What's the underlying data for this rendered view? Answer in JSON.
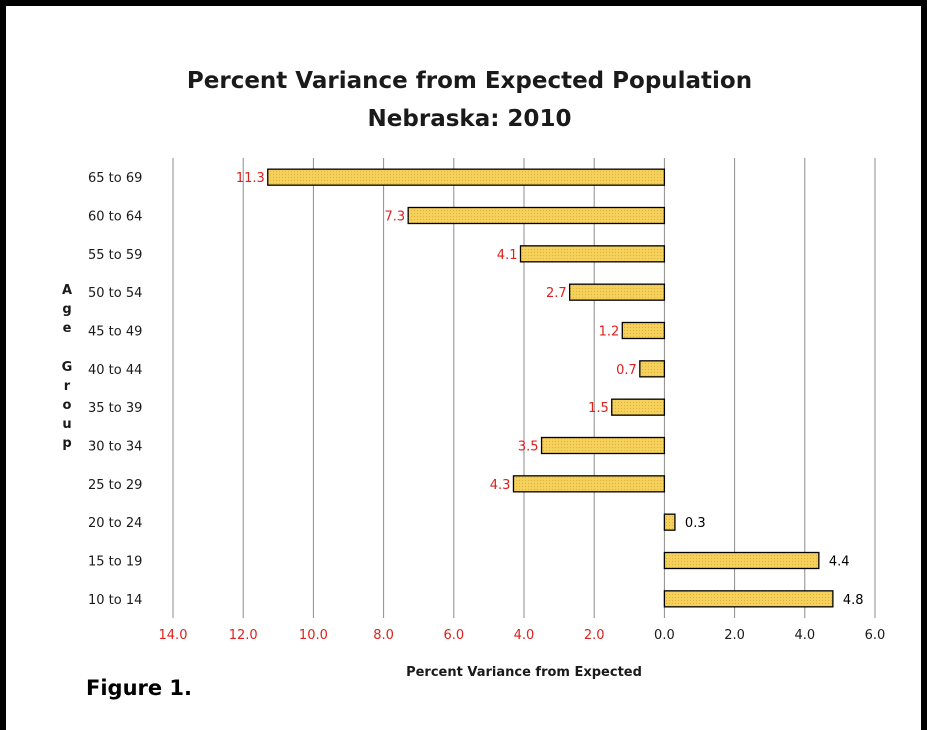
{
  "chart_data": {
    "type": "bar",
    "orientation": "horizontal",
    "title": "Percent Variance from Expected Population",
    "subtitle": "Nebraska: 2010",
    "xlabel": "Percent Variance from Expected",
    "ylabel": "Age Group",
    "categories": [
      "65 to 69",
      "60 to 64",
      "55 to 59",
      "50 to 54",
      "45 to 49",
      "40 to 44",
      "35 to 39",
      "30 to 34",
      "25 to 29",
      "20 to 24",
      "15 to 19",
      "10 to 14"
    ],
    "values": [
      -11.3,
      -7.3,
      -4.1,
      -2.7,
      -1.2,
      -0.7,
      -1.5,
      -3.5,
      -4.3,
      0.3,
      4.4,
      4.8
    ],
    "data_labels": [
      "11.3",
      "7.3",
      "4.1",
      "2.7",
      "1.2",
      "0.7",
      "1.5",
      "3.5",
      "4.3",
      "0.3",
      "4.4",
      "4.8"
    ],
    "xlim": [
      -14,
      6
    ],
    "x_tick_values": [
      -14,
      -12,
      -10,
      -8,
      -6,
      -4,
      -2,
      0,
      2,
      4,
      6
    ],
    "x_tick_labels": [
      "14.0",
      "12.0",
      "10.0",
      "8.0",
      "6.0",
      "4.0",
      "2.0",
      "0.0",
      "2.0",
      "4.0",
      "6.0"
    ],
    "grid": true,
    "legend": "none",
    "colors": {
      "bar_fill": "#f5d05a",
      "bar_stroke": "#000000",
      "negative_label": "#e0201e",
      "positive_label": "#000000",
      "gridline": "#8c8c8c"
    }
  },
  "figure_label": "Figure 1."
}
